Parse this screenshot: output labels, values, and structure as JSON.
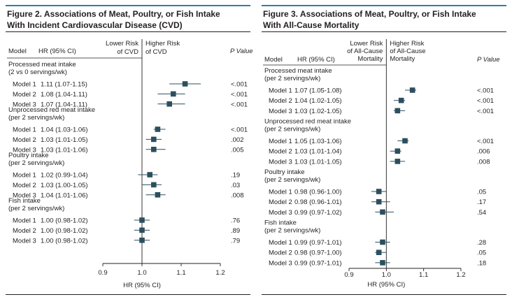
{
  "chart_data": [
    {
      "type": "forest",
      "title_lines": [
        "Figure 2. Associations of Meat, Poultry, or Fish Intake",
        "With Incident Cardiovascular Disease (CVD)"
      ],
      "col_model": "Model",
      "col_hr": "HR (95% CI)",
      "col_p": "P Value",
      "dir_left_lines": [
        "Lower Risk",
        "of CVD"
      ],
      "dir_right_lines": [
        "Higher Risk",
        "of CVD"
      ],
      "xlabel": "HR (95% CI)",
      "xlim": [
        0.9,
        1.2
      ],
      "xticks": [
        "0.9",
        "1.0",
        "1.1",
        "1.2"
      ],
      "groups": [
        {
          "label_lines": [
            "Processed meat intake",
            "(2 vs 0 servings/wk)"
          ],
          "rows": [
            {
              "model": "Model 1",
              "hr_text": "1.11 (1.07-1.15)",
              "hr": 1.11,
              "lo": 1.07,
              "hi": 1.15,
              "p": "<.001"
            },
            {
              "model": "Model 2",
              "hr_text": "1.08 (1.04-1.11)",
              "hr": 1.08,
              "lo": 1.04,
              "hi": 1.11,
              "p": "<.001"
            },
            {
              "model": "Model 3",
              "hr_text": "1.07 (1.04-1.11)",
              "hr": 1.07,
              "lo": 1.04,
              "hi": 1.11,
              "p": "<.001"
            }
          ]
        },
        {
          "label_lines": [
            "Unprocessed red meat intake",
            "(per 2 servings/wk)"
          ],
          "rows": [
            {
              "model": "Model 1",
              "hr_text": "1.04 (1.03-1.06)",
              "hr": 1.04,
              "lo": 1.03,
              "hi": 1.06,
              "p": "<.001"
            },
            {
              "model": "Model 2",
              "hr_text": "1.03 (1.01-1.05)",
              "hr": 1.03,
              "lo": 1.01,
              "hi": 1.05,
              "p": ".002"
            },
            {
              "model": "Model 3",
              "hr_text": "1.03 (1.01-1.06)",
              "hr": 1.03,
              "lo": 1.01,
              "hi": 1.06,
              "p": ".005"
            }
          ]
        },
        {
          "label_lines": [
            "Poultry intake",
            "(per 2 servings/wk)"
          ],
          "rows": [
            {
              "model": "Model 1",
              "hr_text": "1.02 (0.99-1.04)",
              "hr": 1.02,
              "lo": 0.99,
              "hi": 1.04,
              "p": ".19"
            },
            {
              "model": "Model 2",
              "hr_text": "1.03 (1.00-1.05)",
              "hr": 1.03,
              "lo": 1.0,
              "hi": 1.05,
              "p": ".03"
            },
            {
              "model": "Model 3",
              "hr_text": "1.04 (1.01-1.06)",
              "hr": 1.04,
              "lo": 1.01,
              "hi": 1.06,
              "p": ".008"
            }
          ]
        },
        {
          "label_lines": [
            "Fish intake",
            "(per 2 servings/wk)"
          ],
          "rows": [
            {
              "model": "Model 1",
              "hr_text": "1.00 (0.98-1.02)",
              "hr": 1.0,
              "lo": 0.98,
              "hi": 1.02,
              "p": ".76"
            },
            {
              "model": "Model 2",
              "hr_text": "1.00 (0.98-1.02)",
              "hr": 1.0,
              "lo": 0.98,
              "hi": 1.02,
              "p": ".89"
            },
            {
              "model": "Model 3",
              "hr_text": "1.00 (0.98-1.02)",
              "hr": 1.0,
              "lo": 0.98,
              "hi": 1.02,
              "p": ".79"
            }
          ]
        }
      ]
    },
    {
      "type": "forest",
      "title_lines": [
        "Figure 3. Associations of Meat, Poultry, or Fish Intake",
        "With All-Cause Mortality"
      ],
      "col_model": "Model",
      "col_hr": "HR (95% CI)",
      "col_p": "P Value",
      "dir_left_lines": [
        "Lower Risk",
        "of All-Cause",
        "Mortality"
      ],
      "dir_right_lines": [
        "Higher Risk",
        "of All-Cause",
        "Mortality"
      ],
      "xlabel": "HR (95% CI)",
      "xlim": [
        0.9,
        1.2
      ],
      "xticks": [
        "0.9",
        "1.0",
        "1.1",
        "1.2"
      ],
      "groups": [
        {
          "label_lines": [
            "Processed meat intake",
            "(per 2 servings/wk)"
          ],
          "rows": [
            {
              "model": "Model 1",
              "hr_text": "1.07 (1.05-1.08)",
              "hr": 1.07,
              "lo": 1.05,
              "hi": 1.08,
              "p": "<.001"
            },
            {
              "model": "Model 2",
              "hr_text": "1.04 (1.02-1.05)",
              "hr": 1.04,
              "lo": 1.02,
              "hi": 1.05,
              "p": "<.001"
            },
            {
              "model": "Model 3",
              "hr_text": "1.03 (1.02-1.05)",
              "hr": 1.03,
              "lo": 1.02,
              "hi": 1.05,
              "p": "<.001"
            }
          ]
        },
        {
          "label_lines": [
            "Unprocessed red meat intake",
            "(per 2 servings/wk)"
          ],
          "rows": [
            {
              "model": "Model 1",
              "hr_text": "1.05 (1.03-1.06)",
              "hr": 1.05,
              "lo": 1.03,
              "hi": 1.06,
              "p": "<.001"
            },
            {
              "model": "Model 2",
              "hr_text": "1.03 (1.01-1.04)",
              "hr": 1.03,
              "lo": 1.01,
              "hi": 1.04,
              "p": ".006"
            },
            {
              "model": "Model 3",
              "hr_text": "1.03 (1.01-1.05)",
              "hr": 1.03,
              "lo": 1.01,
              "hi": 1.05,
              "p": ".008"
            }
          ]
        },
        {
          "label_lines": [
            "Poultry intake",
            "(per 2 servings/wk)"
          ],
          "rows": [
            {
              "model": "Model 1",
              "hr_text": "0.98 (0.96-1.00)",
              "hr": 0.98,
              "lo": 0.96,
              "hi": 1.0,
              "p": ".05"
            },
            {
              "model": "Model 2",
              "hr_text": "0.98 (0.96-1.01)",
              "hr": 0.98,
              "lo": 0.96,
              "hi": 1.01,
              "p": ".17"
            },
            {
              "model": "Model 3",
              "hr_text": "0.99 (0.97-1.02)",
              "hr": 0.99,
              "lo": 0.97,
              "hi": 1.02,
              "p": ".54"
            }
          ]
        },
        {
          "label_lines": [
            "Fish intake",
            "(per 2 servings/wk)"
          ],
          "rows": [
            {
              "model": "Model 1",
              "hr_text": "0.99 (0.97-1.01)",
              "hr": 0.99,
              "lo": 0.97,
              "hi": 1.01,
              "p": ".28"
            },
            {
              "model": "Model 2",
              "hr_text": "0.98 (0.97-1.00)",
              "hr": 0.98,
              "lo": 0.97,
              "hi": 1.0,
              "p": ".05"
            },
            {
              "model": "Model 3",
              "hr_text": "0.99 (0.97-1.01)",
              "hr": 0.99,
              "lo": 0.97,
              "hi": 1.01,
              "p": ".18"
            }
          ]
        }
      ]
    }
  ],
  "colors": {
    "accent_rule": "#2f7dab",
    "marker": "#2c4f5e",
    "text": "#231f20",
    "ref_line": "#231f20"
  }
}
